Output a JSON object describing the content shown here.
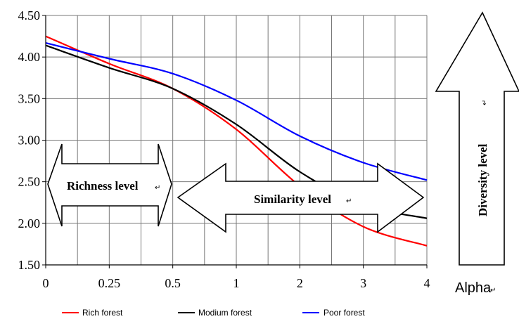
{
  "chart_data": {
    "type": "line",
    "title": "",
    "xlabel": "Alpha",
    "ylabel": "",
    "x_tick_labels": [
      "0",
      "0.25",
      "0.5",
      "1",
      "2",
      "3",
      "4"
    ],
    "y_tick_labels": [
      "1.50",
      "2.00",
      "2.50",
      "3.00",
      "3.50",
      "4.00",
      "4.50"
    ],
    "ylim": [
      1.5,
      4.5
    ],
    "grid": true,
    "legend_position": "bottom",
    "x": [
      "0",
      "0.25",
      "0.5",
      "1",
      "2",
      "3",
      "4"
    ],
    "series": [
      {
        "name": "Rich forest",
        "color": "#ff0000",
        "values": [
          4.25,
          3.92,
          3.62,
          3.13,
          2.45,
          1.96,
          1.73
        ]
      },
      {
        "name": "Modium forest",
        "color": "#000000",
        "values": [
          4.14,
          3.87,
          3.62,
          3.19,
          2.62,
          2.22,
          2.06
        ]
      },
      {
        "name": "Poor forest",
        "color": "#0000ff",
        "values": [
          4.17,
          3.98,
          3.8,
          3.48,
          3.05,
          2.73,
          2.52
        ]
      }
    ],
    "annotations": {
      "richness": "Richness level",
      "similarity": "Similarity  level",
      "diversity": "Diversity level"
    },
    "return_mark": "↵"
  }
}
